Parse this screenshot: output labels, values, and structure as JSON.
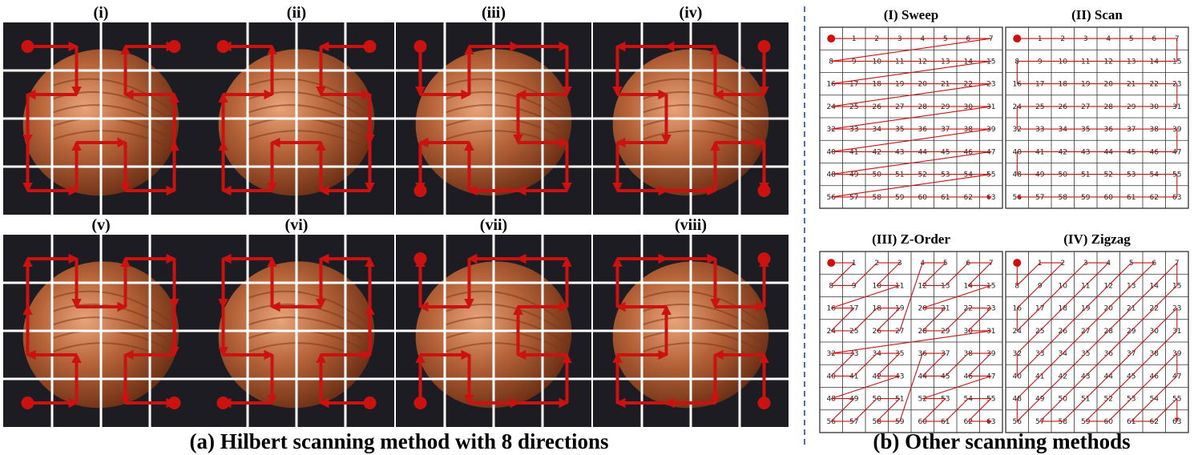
{
  "panel_a": {
    "caption": "(a)  Hilbert scanning method with 8 directions",
    "subfigures": [
      {
        "label": "(i)"
      },
      {
        "label": "(ii)"
      },
      {
        "label": "(iii)"
      },
      {
        "label": "(iv)"
      },
      {
        "label": "(v)"
      },
      {
        "label": "(vi)"
      },
      {
        "label": "(vii)"
      },
      {
        "label": "(viii)"
      }
    ]
  },
  "panel_b": {
    "caption": "(b)  Other scanning methods",
    "grids": [
      {
        "label": "(I)  Sweep"
      },
      {
        "label": "(II)  Scan"
      },
      {
        "label": "(III)  Z-Order"
      },
      {
        "label": "(IV)  Zigzag"
      }
    ]
  },
  "colors": {
    "path": "#cc1111",
    "tile_bg": "#1c1c22",
    "divider": "#4472c4",
    "nut": "#b0623a"
  }
}
